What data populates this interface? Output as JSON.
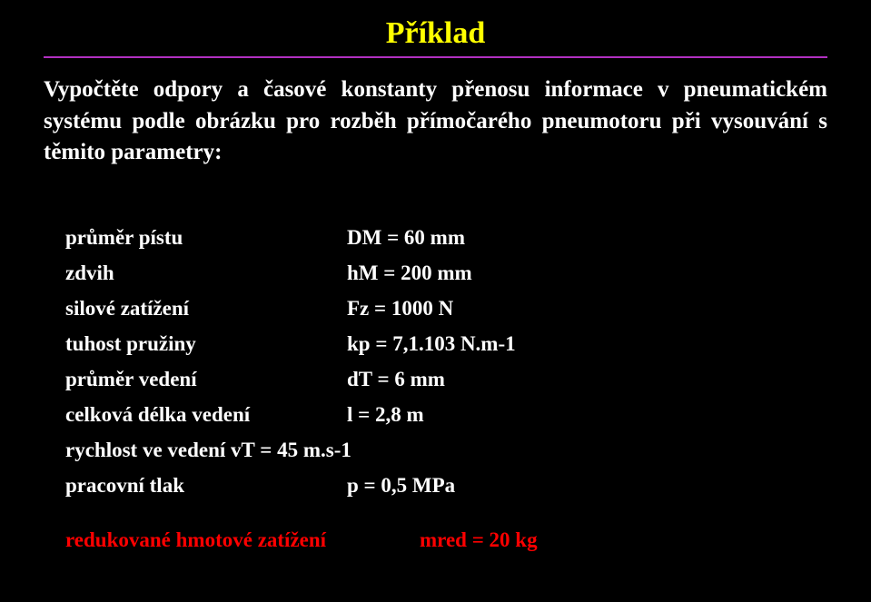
{
  "title": "Příklad",
  "statement": "Vypočtěte odpory a časové konstanty přenosu informace v pneumatickém systému podle obrázku pro rozběh přímočarého pneumotoru při vysouvání s těmito parametry:",
  "colors": {
    "background": "#000000",
    "title": "#ffff00",
    "rule": "#b030c0",
    "body_text": "#ffffff",
    "highlight": "#ff0000"
  },
  "typography": {
    "family": "Times New Roman",
    "title_size_pt": 26,
    "body_size_pt": 19,
    "param_size_pt": 17,
    "weight": "bold"
  },
  "params": [
    {
      "label": "průměr pístu",
      "value": "DM = 60 mm"
    },
    {
      "label": "zdvih",
      "value": "hM   =    200 mm"
    },
    {
      "label": "silové zatížení",
      "value": "Fz   =  1000 N"
    },
    {
      "label": "tuhost pružiny",
      "value": "kp = 7,1.103 N.m-1"
    },
    {
      "label": "průměr vedení",
      "value": "dT = 6 mm"
    },
    {
      "label": "celková délka vedení",
      "value": "l = 2,8 m"
    },
    {
      "label": "rychlost ve vedení vT = 45 m.s-1",
      "value": ""
    },
    {
      "label": "pracovní tlak",
      "value": "p = 0,5 MPa"
    }
  ],
  "reduced": {
    "label": "redukované hmotové zatížení",
    "value": "mred = 20 kg"
  }
}
